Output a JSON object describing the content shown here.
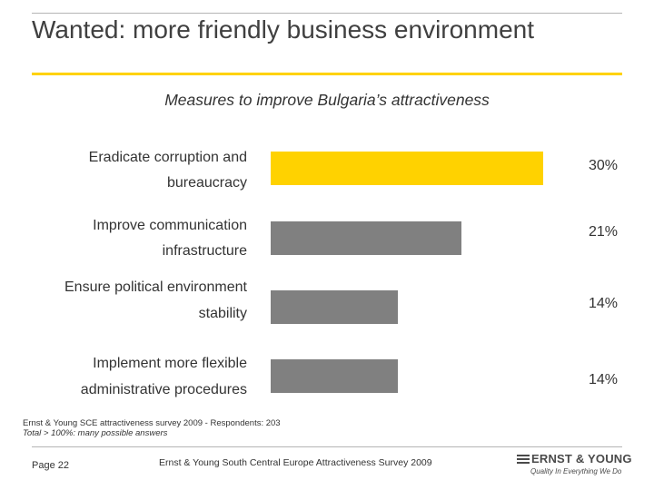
{
  "slide": {
    "title": "Wanted: more friendly business environment",
    "page": "Page 22",
    "footer_source": "Ernst & Young South Central Europe Attractiveness Survey 2009"
  },
  "note": {
    "line1": "Ernst & Young SCE attractiveness survey 2009 - Respondents: 203",
    "line2": "Total > 100%: many possible answers"
  },
  "logo": {
    "name": "ERNST & YOUNG",
    "tagline": "Quality In Everything We Do"
  },
  "colors": {
    "accent": "#ffd200",
    "bar_default": "#808080",
    "rule": "#b5b5b5"
  },
  "chart_data": {
    "type": "bar",
    "orientation": "horizontal",
    "title": "Measures to improve Bulgaria’s attractiveness",
    "categories": [
      [
        "Eradicate corruption and",
        "bureaucracy"
      ],
      [
        "Improve  communication",
        "infrastructure"
      ],
      [
        "Ensure political environment",
        "stability"
      ],
      [
        "Implement more flexible",
        "administrative procedures"
      ]
    ],
    "values": [
      30,
      21,
      14,
      14
    ],
    "value_labels": [
      "30%",
      "21%",
      "14%",
      "14%"
    ],
    "highlight_index": 0,
    "grid": false,
    "legend": "none"
  }
}
